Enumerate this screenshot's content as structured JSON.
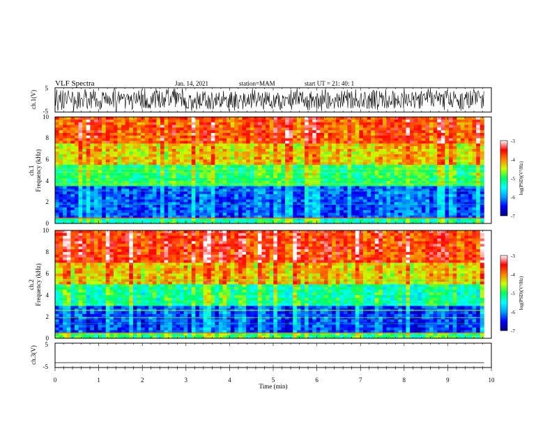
{
  "header": {
    "title": "VLF Spectra",
    "date": "Jan. 14, 2021",
    "station": "station=MAM",
    "start": "start UT = 21: 40: 1"
  },
  "chart_data": [
    {
      "type": "line",
      "panel": "ch1-waveform",
      "ylabel": "ch.1(V)",
      "ylim": [
        -5,
        5
      ],
      "yticks": [
        "5",
        "-5"
      ],
      "xlim": [
        0,
        10
      ],
      "xlim_data_end": 9.83,
      "description_values": {
        "amplitude_band": [
          -5,
          5
        ],
        "note": "dense broadband noise fills panel"
      }
    },
    {
      "type": "heatmap",
      "panel": "ch1-spectrogram",
      "ylabel": "ch.1 Frequency (kHz)",
      "ylabel_line1": "ch.1",
      "ylabel_line2": "Frequency (kHz)",
      "ylim": [
        0,
        10
      ],
      "yticks": [
        "0",
        "2",
        "4",
        "6",
        "8",
        "10"
      ],
      "xlim": [
        0,
        10
      ],
      "xlim_data_end": 9.83,
      "colorbar": {
        "label": "log(PSD)(V²/Hz)",
        "range": [
          -7,
          -3
        ],
        "ticks": [
          "-3",
          "-4",
          "-5",
          "-6",
          "-7"
        ]
      },
      "bands_log_psd": [
        {
          "freq_khz": [
            0,
            0.5
          ],
          "level": -5.2
        },
        {
          "freq_khz": [
            0.5,
            3.5
          ],
          "level": -6.2
        },
        {
          "freq_khz": [
            3.5,
            5.5
          ],
          "level": -5.0
        },
        {
          "freq_khz": [
            5.5,
            7.5
          ],
          "level": -4.3
        },
        {
          "freq_khz": [
            7.5,
            10
          ],
          "level": -3.8
        }
      ]
    },
    {
      "type": "heatmap",
      "panel": "ch2-spectrogram",
      "ylabel": "ch.2 Frequency (kHz)",
      "ylabel_line1": "ch.2",
      "ylabel_line2": "Frequency (kHz)",
      "ylim": [
        0,
        10
      ],
      "yticks": [
        "0",
        "2",
        "4",
        "6",
        "8",
        "10"
      ],
      "xlim": [
        0,
        10
      ],
      "xlim_data_end": 9.83,
      "colorbar": {
        "label": "log(PSD)(V²/Hz)",
        "range": [
          -7,
          -3
        ],
        "ticks": [
          "-3",
          "-4",
          "-5",
          "-6",
          "-7"
        ]
      },
      "bands_log_psd": [
        {
          "freq_khz": [
            0,
            0.5
          ],
          "level": -5.0
        },
        {
          "freq_khz": [
            0.5,
            3.0
          ],
          "level": -6.3
        },
        {
          "freq_khz": [
            3.0,
            5.0
          ],
          "level": -5.2
        },
        {
          "freq_khz": [
            5.0,
            7.0
          ],
          "level": -4.3
        },
        {
          "freq_khz": [
            7.0,
            10
          ],
          "level": -3.7
        }
      ]
    },
    {
      "type": "line",
      "panel": "ch3-waveform",
      "ylabel": "ch.3(V)",
      "ylim": [
        -5,
        5
      ],
      "yticks": [
        "5",
        "-5"
      ],
      "xlim": [
        0,
        10
      ],
      "xlim_data_end": 9.83,
      "x": [
        0,
        9.83
      ],
      "y": [
        -3,
        -3
      ],
      "xlabel": "Time (min)",
      "xticks": [
        "0",
        "1",
        "2",
        "3",
        "4",
        "5",
        "6",
        "7",
        "8",
        "9",
        "10"
      ]
    }
  ],
  "colors": {
    "colormap": [
      "#00007a",
      "#0000ff",
      "#00a0ff",
      "#00ffff",
      "#00ff60",
      "#ccff00",
      "#ff8000",
      "#ff0000",
      "#ffffff"
    ]
  }
}
